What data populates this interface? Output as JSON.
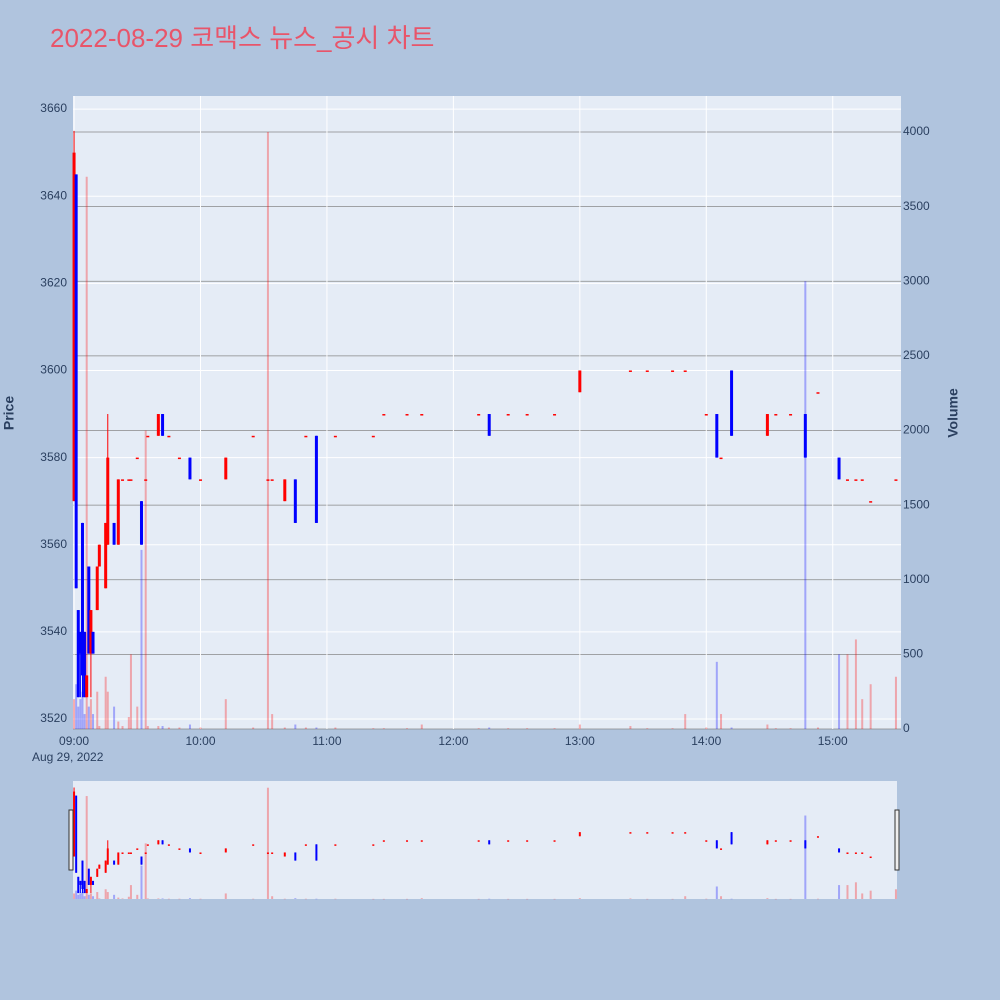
{
  "chart_data": {
    "type": "candlestick",
    "title": "2022-08-29 코맥스 뉴스_공시 차트",
    "y_label": "Price",
    "y2_label": "Volume",
    "x_date_label": "Aug 29, 2022",
    "x": [
      "09:00",
      "09:01",
      "09:02",
      "09:03",
      "09:04",
      "09:05",
      "09:06",
      "09:07",
      "09:08",
      "09:09",
      "09:11",
      "09:12",
      "09:15",
      "09:16",
      "09:19",
      "09:21",
      "09:23",
      "09:26",
      "09:27",
      "09:30",
      "09:32",
      "09:34",
      "09:35",
      "09:40",
      "09:42",
      "09:45",
      "09:50",
      "09:55",
      "10:00",
      "10:12",
      "10:25",
      "10:32",
      "10:34",
      "10:40",
      "10:45",
      "10:50",
      "10:55",
      "11:04",
      "11:22",
      "11:27",
      "11:38",
      "11:45",
      "12:12",
      "12:17",
      "12:26",
      "12:35",
      "12:48",
      "13:00",
      "13:24",
      "13:32",
      "13:44",
      "13:50",
      "14:00",
      "14:05",
      "14:07",
      "14:12",
      "14:29",
      "14:33",
      "14:40",
      "14:47",
      "14:53",
      "15:03",
      "15:07",
      "15:11",
      "15:14",
      "15:18",
      "15:30"
    ],
    "open": [
      3570,
      3645,
      3545,
      3540,
      3565,
      3540,
      3525,
      3555,
      3535,
      3540,
      3545,
      3555,
      3550,
      3560,
      3565,
      3560,
      3575,
      3575,
      3575,
      3580,
      3570,
      3575,
      3585,
      3585,
      3590,
      3585,
      3580,
      3580,
      3575,
      3575,
      3585,
      3575,
      3575,
      3570,
      3575,
      3585,
      3585,
      3585,
      3585,
      3590,
      3590,
      3590,
      3590,
      3590,
      3590,
      3590,
      3590,
      3595,
      3600,
      3600,
      3600,
      3600,
      3590,
      3590,
      3580,
      3600,
      3585,
      3590,
      3590,
      3590,
      3595,
      3580,
      3575,
      3575,
      3575,
      3570,
      3575
    ],
    "high": [
      3655,
      3645,
      3545,
      3540,
      3565,
      3540,
      3530,
      3555,
      3545,
      3540,
      3555,
      3560,
      3565,
      3590,
      3565,
      3575,
      3575,
      3575,
      3575,
      3580,
      3570,
      3575,
      3585,
      3590,
      3590,
      3585,
      3580,
      3580,
      3575,
      3580,
      3585,
      3575,
      3575,
      3575,
      3575,
      3585,
      3585,
      3585,
      3585,
      3590,
      3590,
      3590,
      3590,
      3590,
      3590,
      3590,
      3590,
      3600,
      3600,
      3600,
      3600,
      3600,
      3590,
      3590,
      3580,
      3600,
      3590,
      3590,
      3590,
      3590,
      3595,
      3580,
      3575,
      3575,
      3575,
      3570,
      3575
    ],
    "low": [
      3570,
      3550,
      3525,
      3525,
      3525,
      3525,
      3525,
      3535,
      3525,
      3535,
      3545,
      3555,
      3550,
      3560,
      3560,
      3560,
      3575,
      3575,
      3575,
      3580,
      3560,
      3575,
      3585,
      3585,
      3585,
      3585,
      3580,
      3575,
      3575,
      3575,
      3585,
      3575,
      3575,
      3570,
      3565,
      3585,
      3565,
      3585,
      3585,
      3590,
      3590,
      3590,
      3590,
      3585,
      3590,
      3590,
      3590,
      3595,
      3600,
      3600,
      3600,
      3600,
      3590,
      3580,
      3580,
      3585,
      3585,
      3590,
      3590,
      3580,
      3595,
      3575,
      3575,
      3575,
      3575,
      3570,
      3575
    ],
    "close": [
      3650,
      3550,
      3525,
      3535,
      3530,
      3525,
      3530,
      3535,
      3545,
      3535,
      3555,
      3560,
      3565,
      3580,
      3560,
      3575,
      3575,
      3575,
      3575,
      3580,
      3560,
      3575,
      3585,
      3590,
      3585,
      3585,
      3580,
      3575,
      3575,
      3580,
      3585,
      3575,
      3575,
      3575,
      3565,
      3585,
      3565,
      3585,
      3585,
      3590,
      3590,
      3590,
      3590,
      3585,
      3590,
      3590,
      3590,
      3600,
      3600,
      3600,
      3600,
      3600,
      3590,
      3580,
      3580,
      3585,
      3590,
      3590,
      3590,
      3580,
      3595,
      3575,
      3575,
      3575,
      3575,
      3570,
      3575
    ],
    "volume": [
      200,
      300,
      150,
      200,
      250,
      100,
      3700,
      150,
      200,
      100,
      250,
      20,
      350,
      250,
      150,
      50,
      20,
      80,
      500,
      150,
      1200,
      2000,
      20,
      20,
      20,
      10,
      10,
      30,
      10,
      200,
      10,
      4000,
      100,
      10,
      30,
      10,
      10,
      10,
      5,
      5,
      5,
      30,
      5,
      10,
      5,
      5,
      5,
      30,
      20,
      5,
      5,
      100,
      10,
      450,
      100,
      10,
      30,
      5,
      5,
      3000,
      10,
      500,
      500,
      600,
      200,
      300,
      350
    ],
    "increasing_color": "#ff0000",
    "decreasing_color": "#0000ff",
    "xlim": [
      "08:59:30",
      "15:30:30"
    ],
    "xticks": [
      "09:00",
      "10:00",
      "11:00",
      "12:00",
      "13:00",
      "14:00",
      "15:00"
    ],
    "ylim": [
      3517.7,
      3663
    ],
    "yticks": [
      3520,
      3540,
      3560,
      3580,
      3600,
      3620,
      3640,
      3660
    ],
    "y2lim": [
      0,
      4241
    ],
    "y2ticks": [
      0,
      500,
      1000,
      1500,
      2000,
      2500,
      3000,
      3500,
      4000
    ],
    "grid": true,
    "rangeslider": true
  }
}
